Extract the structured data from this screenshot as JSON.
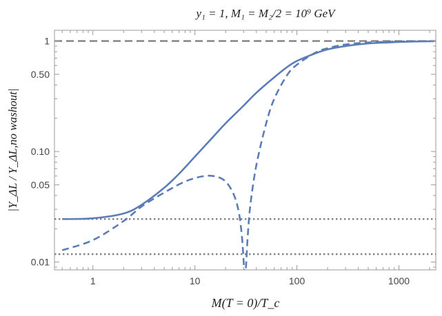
{
  "chart_data": {
    "type": "line",
    "title": "y₁ = 1, M₁ = M₂/2 = 10⁹ GeV",
    "xlabel": "M(T = 0)/T_c",
    "ylabel": "|Y_ΔL / Y_ΔL,no washout|",
    "xscale": "log",
    "yscale": "log",
    "xlim": [
      0.42,
      2300
    ],
    "ylim": [
      0.0085,
      1.25
    ],
    "xticks": [
      1,
      10,
      100,
      1000
    ],
    "xtick_labels": [
      "1",
      "10",
      "100",
      "1000"
    ],
    "yticks": [
      0.01,
      0.05,
      0.1,
      0.5,
      1
    ],
    "ytick_labels": [
      "0.01",
      "0.05",
      "0.10",
      "0.50",
      "1"
    ],
    "reference_lines": [
      {
        "y": 1.0,
        "style": "dashed",
        "color": "#7f7f7f"
      },
      {
        "y": 0.0245,
        "style": "dotted",
        "color": "#7f7f7f"
      },
      {
        "y": 0.0118,
        "style": "dotted",
        "color": "#7f7f7f"
      }
    ],
    "series": [
      {
        "style": "solid",
        "color": "#5b7db6",
        "x": [
          0.5,
          1,
          2,
          3,
          5,
          7,
          10,
          15,
          20,
          30,
          40,
          60,
          80,
          100,
          150,
          200,
          300,
          500,
          800,
          1000,
          1500,
          2200
        ],
        "y": [
          0.0245,
          0.0249,
          0.0275,
          0.033,
          0.047,
          0.063,
          0.09,
          0.135,
          0.18,
          0.26,
          0.34,
          0.47,
          0.58,
          0.66,
          0.77,
          0.84,
          0.9,
          0.95,
          0.97,
          0.98,
          0.99,
          0.995
        ]
      },
      {
        "style": "dashed",
        "color": "#5b7db6",
        "x": [
          0.5,
          1,
          2,
          3,
          5,
          8,
          12,
          16,
          20,
          24,
          27,
          29,
          30.5,
          31.5,
          33,
          35,
          40,
          50,
          60,
          80,
          100,
          150,
          200,
          300,
          500,
          800,
          1000,
          1500,
          2200
        ],
        "y": [
          0.0128,
          0.0158,
          0.0235,
          0.0318,
          0.0425,
          0.0535,
          0.0598,
          0.0595,
          0.0535,
          0.041,
          0.028,
          0.0165,
          0.0085,
          0.0085,
          0.0175,
          0.033,
          0.075,
          0.18,
          0.3,
          0.49,
          0.61,
          0.78,
          0.86,
          0.93,
          0.97,
          0.985,
          0.99,
          0.995,
          0.998
        ]
      }
    ]
  }
}
